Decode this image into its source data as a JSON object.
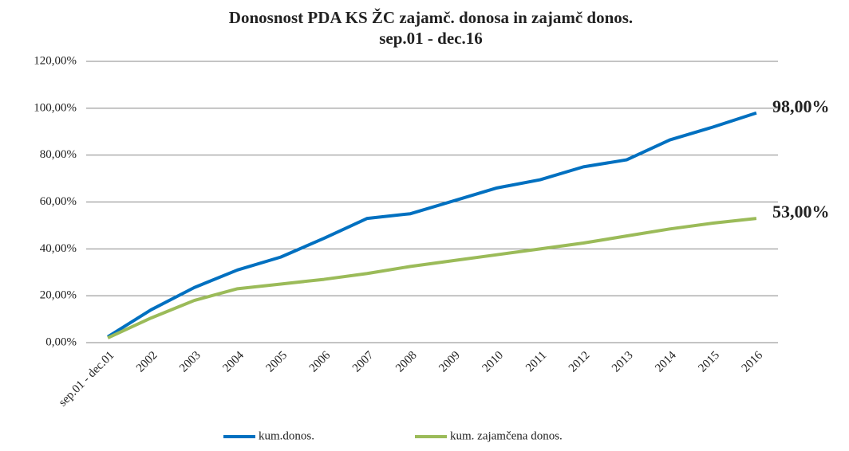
{
  "chart_data": {
    "type": "line",
    "title": "Donosnost PDA KS ŽC zajamč. donosa in zajamč donos.",
    "subtitle": "sep.01 - dec.16",
    "categories": [
      "sep.01 - dec.01",
      "2002",
      "2003",
      "2004",
      "2005",
      "2006",
      "2007",
      "2008",
      "2009",
      "2010",
      "2011",
      "2012",
      "2013",
      "2014",
      "2015",
      "2016"
    ],
    "series": [
      {
        "name": "kum.donos.",
        "color": "#0070c0",
        "values": [
          2.5,
          14,
          23.5,
          31,
          36.5,
          44.5,
          53,
          55,
          60.5,
          66,
          69.5,
          75,
          78,
          86.5,
          92,
          98
        ],
        "value_labels": [
          null,
          null,
          null,
          null,
          null,
          null,
          null,
          null,
          null,
          null,
          null,
          null,
          null,
          null,
          null,
          "98,00%"
        ]
      },
      {
        "name": "kum. zajamčena donos.",
        "color": "#9bbb59",
        "values": [
          2,
          10.5,
          18,
          23,
          25,
          27,
          29.5,
          32.5,
          35,
          37.5,
          40,
          42.5,
          45.5,
          48.5,
          51,
          53
        ],
        "value_labels": [
          null,
          null,
          null,
          null,
          null,
          null,
          null,
          null,
          null,
          null,
          null,
          null,
          null,
          null,
          null,
          "53,00%"
        ]
      }
    ],
    "ylim": [
      0,
      120
    ],
    "yticks": [
      {
        "value": 0,
        "label": "0,00%"
      },
      {
        "value": 20,
        "label": "20,00%"
      },
      {
        "value": 40,
        "label": "40,00%"
      },
      {
        "value": 60,
        "label": "60,00%"
      },
      {
        "value": 80,
        "label": "80,00%"
      },
      {
        "value": 100,
        "label": "100,00%"
      },
      {
        "value": 120,
        "label": "120,00%"
      }
    ],
    "grid": true,
    "legend": "bottom"
  }
}
